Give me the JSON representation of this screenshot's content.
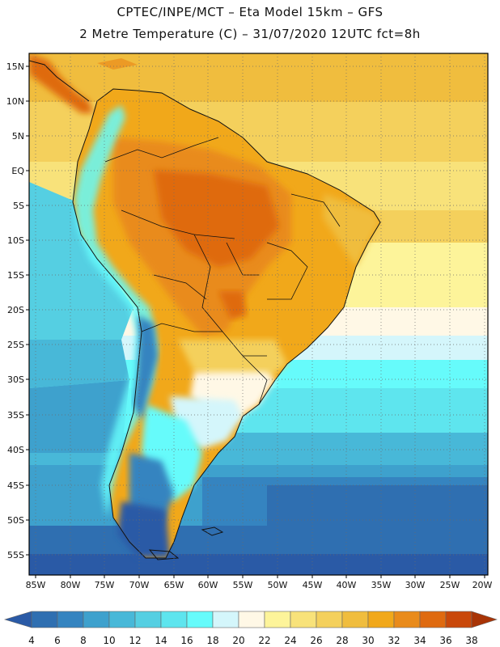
{
  "header": {
    "title_line1": "CPTEC/INPE/MCT –  Eta Model 15km – GFS",
    "title_line2": "2 Metre Temperature (C) – 31/07/2020 12UTC fct=8h"
  },
  "map": {
    "lat_labels": [
      "15N",
      "10N",
      "5N",
      "EQ",
      "5S",
      "10S",
      "15S",
      "20S",
      "25S",
      "30S",
      "35S",
      "40S",
      "45S",
      "50S",
      "55S"
    ],
    "lon_labels": [
      "85W",
      "80W",
      "75W",
      "70W",
      "65W",
      "60W",
      "55W",
      "50W",
      "45W",
      "40W",
      "35W",
      "30W",
      "25W",
      "20W"
    ]
  },
  "colorbar": {
    "labels": [
      "4",
      "6",
      "8",
      "10",
      "12",
      "14",
      "16",
      "18",
      "20",
      "22",
      "24",
      "26",
      "28",
      "30",
      "32",
      "34",
      "36",
      "38"
    ],
    "colors": [
      "#2a5aa6",
      "#2f6fb1",
      "#3584c0",
      "#3ea1cd",
      "#48b8d8",
      "#55cfe2",
      "#5ee5ee",
      "#66fbfb",
      "#d4f6fb",
      "#fff8e6",
      "#fdf49a",
      "#f8e27a",
      "#f4d05c",
      "#f0bd3e",
      "#f1a81a",
      "#e98b1b",
      "#df6a10",
      "#c9480a",
      "#a83406"
    ]
  }
}
